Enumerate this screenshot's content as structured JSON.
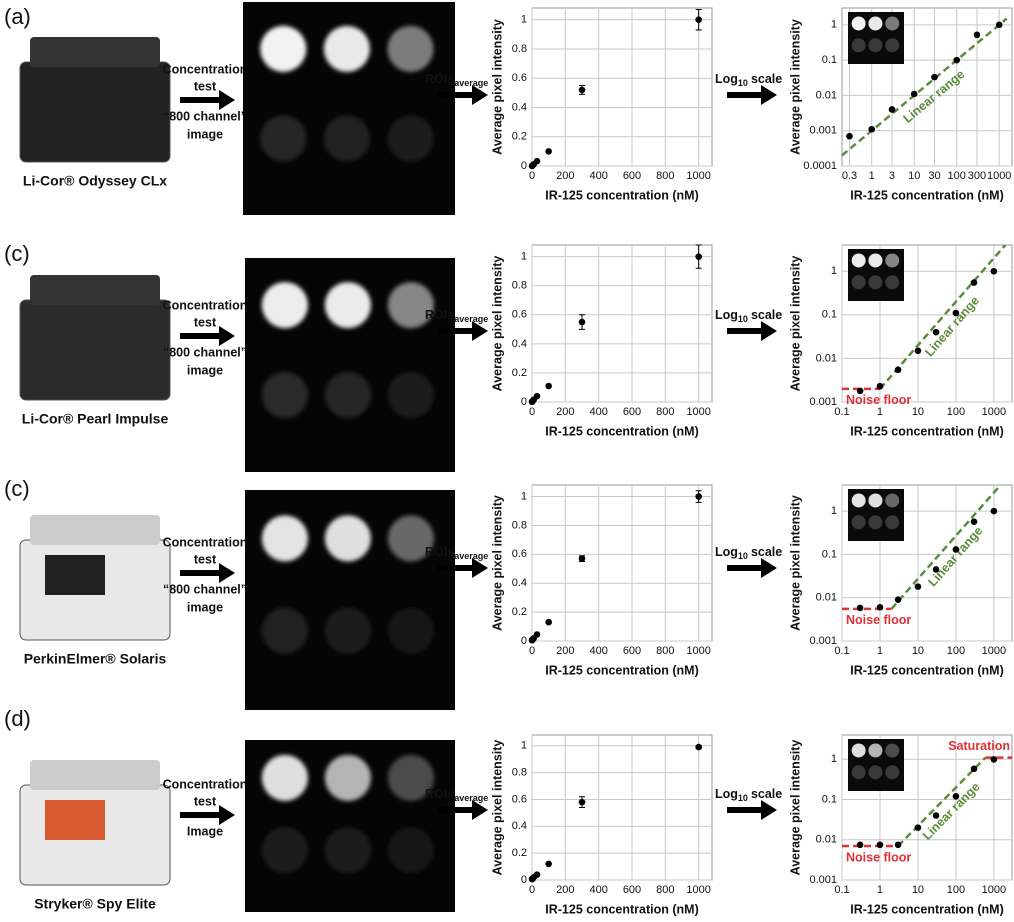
{
  "panels": [
    {
      "label": "(a)",
      "device": "Li-Cor® Odyssey CLx",
      "step1": [
        "Concentration",
        "test",
        "“800 channel”",
        "image"
      ],
      "step2": "ROIs",
      "step2_sub": "average",
      "step3": "Log",
      "step3_sub": "10",
      "step3_rest": "scale"
    },
    {
      "label": "(c)",
      "device": "Li-Cor® Pearl Impulse",
      "step1": [
        "Concentration",
        "test",
        "“800 channel”",
        "image"
      ],
      "step2": "ROIs",
      "step2_sub": "average",
      "step3": "Log",
      "step3_sub": "10",
      "step3_rest": "scale"
    },
    {
      "label": "(c)",
      "device": "PerkinElmer® Solaris",
      "step1": [
        "Concentration",
        "test",
        "“800 channel”",
        "image"
      ],
      "step2": "ROIs",
      "step2_sub": "average",
      "step3": "Log",
      "step3_sub": "10",
      "step3_rest": "scale"
    },
    {
      "label": "(d)",
      "device": "Stryker® Spy Elite",
      "step1": [
        "Concentration",
        "test",
        "Image"
      ],
      "step2": "ROIs",
      "step2_sub": "average",
      "step3": "Log",
      "step3_sub": "10",
      "step3_rest": "scale"
    }
  ],
  "chart_data": [
    {
      "type": "scatter",
      "x_label": "IR-125 concentration (nM)",
      "y_label": "Average pixel intensity",
      "xlim": [
        0,
        1080
      ],
      "ylim": [
        0,
        1.08
      ],
      "xticks": [
        0,
        200,
        400,
        600,
        800,
        1000
      ],
      "yticks": [
        0,
        0.2,
        0.4,
        0.6,
        0.8,
        1
      ],
      "grid": true,
      "series": [
        {
          "color": "#000000",
          "x": [
            0.3,
            1,
            3,
            10,
            30,
            100,
            300,
            1000
          ],
          "values": [
            0.0007,
            0.0011,
            0.004,
            0.011,
            0.033,
            0.1,
            0.52,
            1.0
          ],
          "errors": [
            null,
            null,
            null,
            null,
            null,
            null,
            0.03,
            0.07
          ]
        }
      ]
    },
    {
      "type": "scatter",
      "log_x": true,
      "log_y": true,
      "x_label": "IR-125 concentration (nM)",
      "y_label": "Average pixel intensity",
      "xlim": [
        0.2,
        2000
      ],
      "ylim": [
        0.0001,
        3
      ],
      "xticks": [
        0.3,
        1,
        3,
        10,
        30,
        100,
        300,
        1000
      ],
      "yticks": [
        0.0001,
        0.001,
        0.01,
        0.1,
        1
      ],
      "grid": true,
      "series": [
        {
          "color": "#000000",
          "x": [
            0.3,
            1,
            3,
            10,
            30,
            100,
            300,
            1000
          ],
          "values": [
            0.0007,
            0.0011,
            0.004,
            0.011,
            0.033,
            0.1,
            0.52,
            1.0
          ]
        }
      ],
      "annotations": [
        {
          "text": "Linear range",
          "color": "#5b8c3a",
          "label_side": "along",
          "x": [
            0.2,
            1500
          ],
          "y": [
            0.0002,
            1.5
          ]
        }
      ]
    },
    {
      "type": "scatter",
      "x_label": "IR-125 concentration (nM)",
      "y_label": "Average pixel intensity",
      "xlim": [
        0,
        1080
      ],
      "ylim": [
        0,
        1.08
      ],
      "xticks": [
        0,
        200,
        400,
        600,
        800,
        1000
      ],
      "yticks": [
        0,
        0.2,
        0.4,
        0.6,
        0.8,
        1
      ],
      "grid": true,
      "series": [
        {
          "color": "#000000",
          "x": [
            0.3,
            1,
            3,
            10,
            30,
            100,
            300,
            1000
          ],
          "values": [
            0.0018,
            0.0023,
            0.0055,
            0.015,
            0.04,
            0.11,
            0.55,
            1.0
          ],
          "errors": [
            null,
            null,
            null,
            null,
            null,
            null,
            0.05,
            0.08
          ]
        }
      ]
    },
    {
      "type": "scatter",
      "log_x": true,
      "log_y": true,
      "x_label": "IR-125 concentration (nM)",
      "y_label": "Average pixel intensity",
      "xlim": [
        0.1,
        3000
      ],
      "ylim": [
        0.001,
        4
      ],
      "xticks": [
        0.1,
        1,
        10,
        100,
        1000
      ],
      "yticks": [
        0.001,
        0.01,
        0.1,
        1
      ],
      "grid": true,
      "series": [
        {
          "color": "#000000",
          "x": [
            0.3,
            1,
            3,
            10,
            30,
            100,
            300,
            1000
          ],
          "values": [
            0.0018,
            0.0023,
            0.0055,
            0.015,
            0.04,
            0.11,
            0.55,
            1.0
          ]
        }
      ],
      "annotations": [
        {
          "text": "Noise floor",
          "color": "#e0303a",
          "label_side": "below",
          "x": [
            0.1,
            1
          ],
          "y": [
            0.002,
            0.002
          ]
        },
        {
          "text": "Linear range",
          "color": "#5b8c3a",
          "label_side": "along",
          "x": [
            1,
            2000
          ],
          "y": [
            0.002,
            4
          ]
        }
      ]
    },
    {
      "type": "scatter",
      "x_label": "IR-125 concentration (nM)",
      "y_label": "Average pixel intensity",
      "xlim": [
        0,
        1080
      ],
      "ylim": [
        0,
        1.08
      ],
      "xticks": [
        0,
        200,
        400,
        600,
        800,
        1000
      ],
      "yticks": [
        0,
        0.2,
        0.4,
        0.6,
        0.8,
        1
      ],
      "grid": true,
      "series": [
        {
          "color": "#000000",
          "x": [
            0.3,
            1,
            3,
            10,
            30,
            100,
            300,
            1000
          ],
          "values": [
            0.0058,
            0.006,
            0.009,
            0.018,
            0.045,
            0.13,
            0.57,
            1.0
          ],
          "errors": [
            null,
            null,
            null,
            null,
            null,
            null,
            0.02,
            0.04
          ]
        }
      ]
    },
    {
      "type": "scatter",
      "log_x": true,
      "log_y": true,
      "x_label": "IR-125 concentration (nM)",
      "y_label": "Average pixel intensity",
      "xlim": [
        0.1,
        3000
      ],
      "ylim": [
        0.001,
        4
      ],
      "xticks": [
        0.1,
        1,
        10,
        100,
        1000
      ],
      "yticks": [
        0.001,
        0.01,
        0.1,
        1
      ],
      "grid": true,
      "series": [
        {
          "color": "#000000",
          "x": [
            0.3,
            1,
            3,
            10,
            30,
            100,
            300,
            1000
          ],
          "values": [
            0.0058,
            0.006,
            0.009,
            0.018,
            0.045,
            0.13,
            0.57,
            1.0
          ]
        }
      ],
      "annotations": [
        {
          "text": "Noise floor",
          "color": "#e0303a",
          "label_side": "below",
          "x": [
            0.1,
            2
          ],
          "y": [
            0.0055,
            0.0055
          ]
        },
        {
          "text": "Linear range",
          "color": "#5b8c3a",
          "label_side": "along",
          "x": [
            2,
            1500
          ],
          "y": [
            0.0055,
            4
          ]
        }
      ]
    },
    {
      "type": "scatter",
      "x_label": "IR-125 concentration (nM)",
      "y_label": "Average pixel intensity",
      "xlim": [
        0,
        1080
      ],
      "ylim": [
        0,
        1.08
      ],
      "xticks": [
        0,
        200,
        400,
        600,
        800,
        1000
      ],
      "yticks": [
        0,
        0.2,
        0.4,
        0.6,
        0.8,
        1
      ],
      "grid": true,
      "series": [
        {
          "color": "#000000",
          "x": [
            0.3,
            1,
            3,
            10,
            30,
            100,
            300,
            1000
          ],
          "values": [
            0.0075,
            0.0075,
            0.0075,
            0.02,
            0.04,
            0.12,
            0.58,
            0.99
          ],
          "errors": [
            null,
            null,
            null,
            null,
            null,
            null,
            0.04,
            0.01
          ]
        }
      ]
    },
    {
      "type": "scatter",
      "log_x": true,
      "log_y": true,
      "x_label": "IR-125 concentration (nM)",
      "y_label": "Average pixel intensity",
      "xlim": [
        0.1,
        3000
      ],
      "ylim": [
        0.001,
        4
      ],
      "xticks": [
        0.1,
        1,
        10,
        100,
        1000
      ],
      "yticks": [
        0.001,
        0.01,
        0.1,
        1
      ],
      "grid": true,
      "series": [
        {
          "color": "#000000",
          "x": [
            0.3,
            1,
            3,
            10,
            30,
            100,
            300,
            1000
          ],
          "values": [
            0.0075,
            0.0075,
            0.0075,
            0.02,
            0.04,
            0.12,
            0.58,
            0.99
          ]
        }
      ],
      "annotations": [
        {
          "text": "Noise floor",
          "color": "#e0303a",
          "label_side": "below",
          "x": [
            0.1,
            3
          ],
          "y": [
            0.007,
            0.007
          ]
        },
        {
          "text": "Linear range",
          "color": "#5b8c3a",
          "label_side": "along",
          "x": [
            3,
            600
          ],
          "y": [
            0.007,
            1.1
          ]
        },
        {
          "text": "Saturation",
          "color": "#e0303a",
          "label_side": "above",
          "x": [
            600,
            3000
          ],
          "y": [
            1.1,
            1.1
          ]
        }
      ]
    }
  ]
}
